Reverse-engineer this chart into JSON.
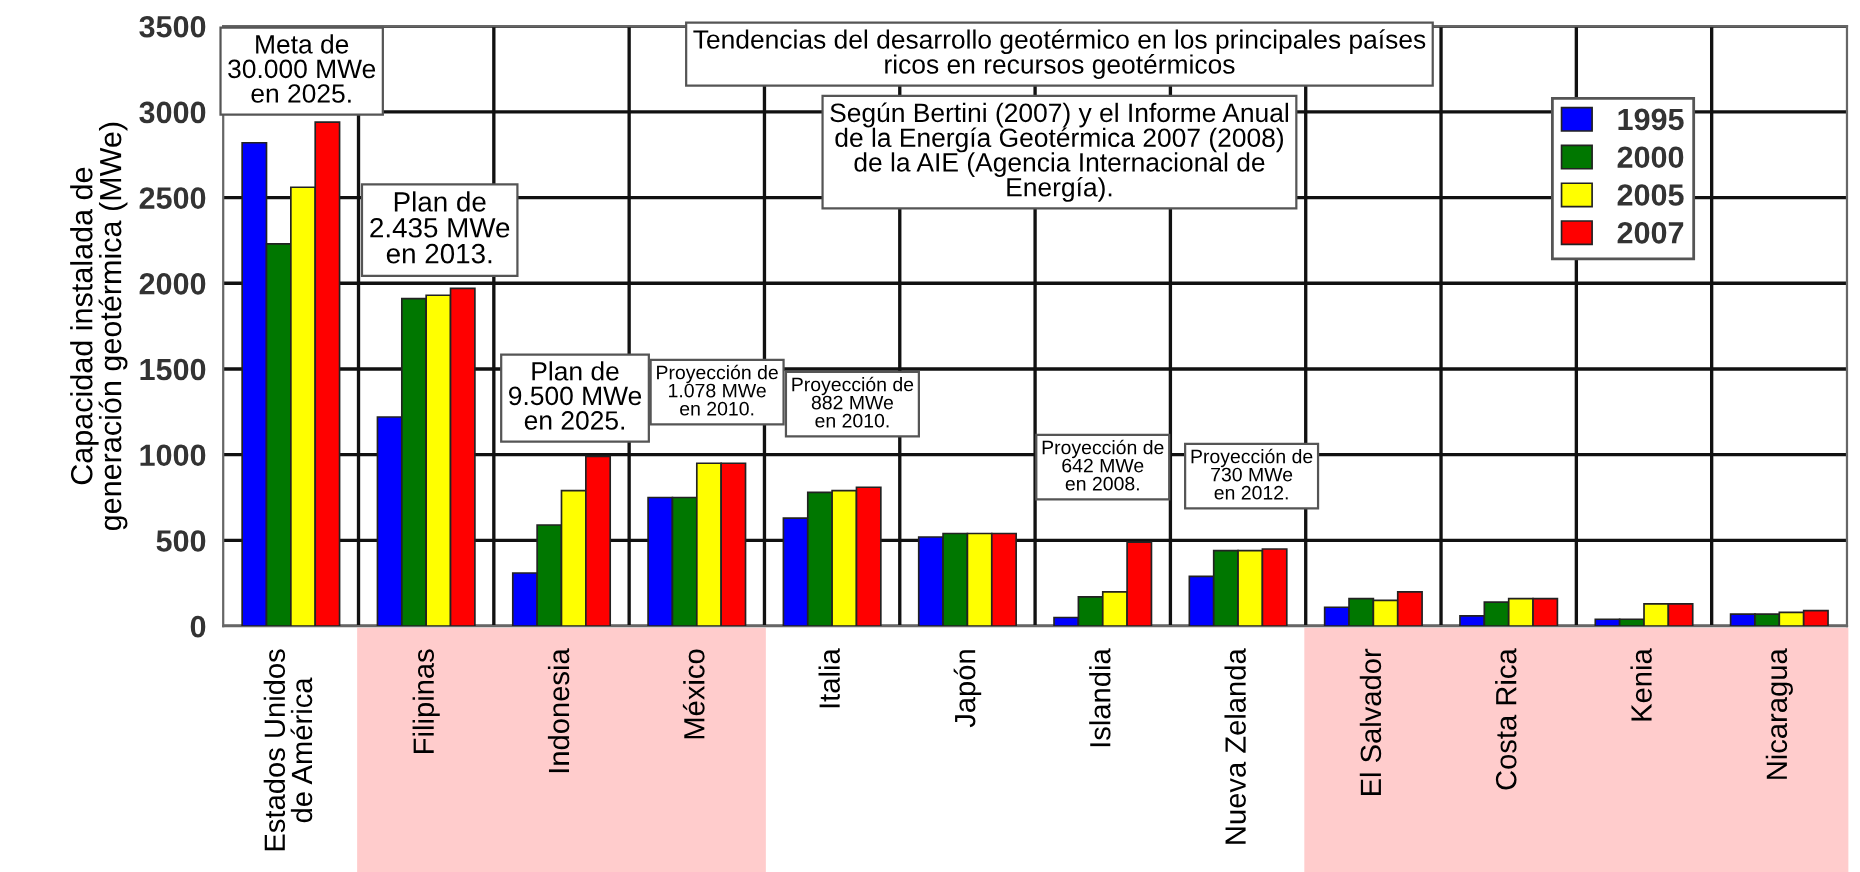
{
  "chart_data": {
    "type": "bar",
    "title": "Tendencias del desarrollo geotérmico en los principales países\nricos en recursos geotérmicos",
    "ylabel": "Capacidad instalada de\ngeneración geotérmica (MWe)",
    "categories": [
      "Estados Unidos\nde América",
      "Filipinas",
      "Indonesia",
      "México",
      "Italia",
      "Japón",
      "Islandia",
      "Nueva Zelanda",
      "El Salvador",
      "Costa Rica",
      "Kenia",
      "Nicaragua"
    ],
    "series": [
      {
        "name": "1995",
        "color": "#0000ff",
        "values": [
          2820,
          1220,
          310,
          750,
          630,
          520,
          50,
          290,
          110,
          60,
          40,
          70
        ]
      },
      {
        "name": "2000",
        "color": "#007700",
        "values": [
          2230,
          1910,
          590,
          750,
          780,
          540,
          170,
          440,
          160,
          140,
          40,
          70
        ]
      },
      {
        "name": "2005",
        "color": "#ffff00",
        "values": [
          2560,
          1930,
          790,
          950,
          790,
          540,
          200,
          440,
          150,
          160,
          130,
          80
        ]
      },
      {
        "name": "2007",
        "color": "#ff0000",
        "values": [
          2940,
          1970,
          990,
          950,
          810,
          540,
          490,
          450,
          200,
          160,
          130,
          90
        ]
      }
    ],
    "ylim": [
      0,
      3500
    ],
    "yticks": [
      0,
      500,
      1000,
      1500,
      2000,
      2500,
      3000,
      3500
    ],
    "grid": true,
    "legend": "top right",
    "annotations": [
      "Meta de\n30.000 MWe\nen 2025.",
      "Plan de\n2.435 MWe\nen 2013.",
      "Plan de\n9.500 MWe\nen 2025.",
      "Proyección de\n1.078 MWe\nen 2010.",
      "Proyección de\n882 MWe\nen 2010.",
      "Proyección de\n642 MWe\nen 2008.",
      "Proyección de\n730 MWe\nen 2012.",
      "Según Bertini (2007) y el Informe Anual\nde la Energía Geotérmica 2007 (2008)\nde la AIE (Agencia Internacional de\nEnergía)."
    ]
  }
}
